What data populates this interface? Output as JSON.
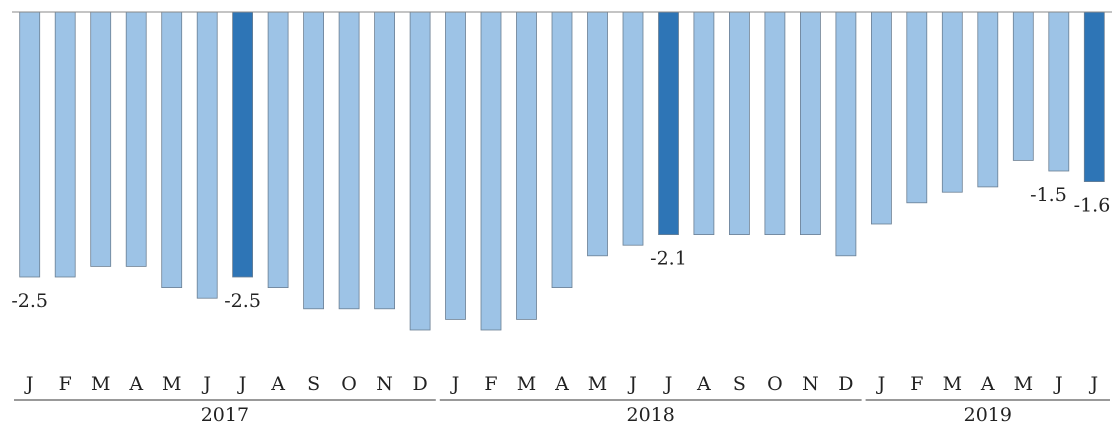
{
  "chart_data": {
    "type": "bar",
    "categories": [
      "J",
      "F",
      "M",
      "A",
      "M",
      "J",
      "J",
      "A",
      "S",
      "O",
      "N",
      "D",
      "J",
      "F",
      "M",
      "A",
      "M",
      "J",
      "J",
      "A",
      "S",
      "O",
      "N",
      "D",
      "J",
      "F",
      "M",
      "A",
      "M",
      "J",
      "J"
    ],
    "groups": [
      {
        "label": "2017",
        "start": 0,
        "end": 11
      },
      {
        "label": "2018",
        "start": 12,
        "end": 23
      },
      {
        "label": "2019",
        "start": 24,
        "end": 30
      }
    ],
    "values": [
      -2.5,
      -2.5,
      -2.4,
      -2.4,
      -2.6,
      -2.7,
      -2.5,
      -2.6,
      -2.8,
      -2.8,
      -2.8,
      -3.0,
      -2.9,
      -3.0,
      -2.9,
      -2.6,
      -2.3,
      -2.2,
      -2.1,
      -2.1,
      -2.1,
      -2.1,
      -2.1,
      -2.3,
      -2.0,
      -1.8,
      -1.7,
      -1.65,
      -1.4,
      -1.5,
      -1.6
    ],
    "highlighted": [
      6,
      18,
      30
    ],
    "data_labels": [
      {
        "index": 0,
        "text": "-2.5"
      },
      {
        "index": 6,
        "text": "-2.5"
      },
      {
        "index": 18,
        "text": "-2.1"
      },
      {
        "index": 29,
        "text": "-1.5"
      },
      {
        "index": 30,
        "text": "-1.6"
      }
    ],
    "ylim": [
      -3.0,
      0
    ],
    "colors": {
      "bar": "#9dc3e6",
      "bar_highlight": "#2e75b6",
      "bar_edge": "#6b7f93",
      "axis": "#888888"
    },
    "grid": false
  }
}
